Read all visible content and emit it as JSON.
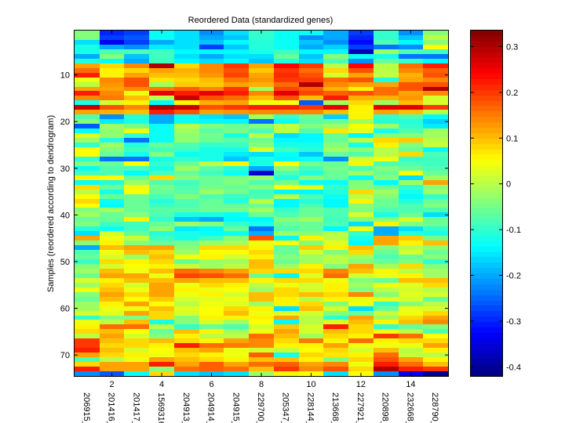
{
  "chart_data": {
    "type": "heatmap",
    "title": "Reordered Data (standardized genes)",
    "xlabel": "",
    "ylabel": "Samples (reordered according to dendrogram)",
    "x_tick_numbers": [
      "2",
      "4",
      "6",
      "8",
      "10",
      "12",
      "14"
    ],
    "x_tick_number_positions": [
      2,
      4,
      6,
      8,
      10,
      12,
      14
    ],
    "x_labels": [
      "206915_",
      "201416_",
      "201417_",
      "1569316",
      "204913_",
      "204914_",
      "204915_",
      "229700_",
      "205347_",
      "228144_",
      "213668_",
      "227921_",
      "220898_",
      "232668_",
      "228790_"
    ],
    "y_ticks": [
      10,
      20,
      30,
      40,
      50,
      60,
      70
    ],
    "y_range": [
      0.5,
      74.5
    ],
    "colorbar": {
      "colormap": "jet",
      "clim": [
        -0.42,
        0.335
      ],
      "ticks": [
        0.3,
        0.2,
        0.1,
        0,
        -0.1,
        -0.2,
        -0.3,
        -0.4
      ],
      "tick_labels": [
        "0.3",
        "0.2",
        "0.1",
        "0",
        "-0.1",
        "-0.2",
        "-0.3",
        "-0.4"
      ]
    },
    "grid": false,
    "values": [
      [
        -0.04,
        -0.3,
        -0.28,
        -0.13,
        -0.16,
        -0.22,
        -0.16,
        -0.1,
        -0.13,
        -0.13,
        -0.2,
        -0.28,
        -0.1,
        -0.22,
        -0.04
      ],
      [
        -0.04,
        -0.28,
        -0.26,
        -0.13,
        -0.16,
        -0.2,
        -0.18,
        -0.1,
        -0.13,
        -0.22,
        -0.2,
        -0.3,
        -0.1,
        -0.18,
        0.0
      ],
      [
        -0.16,
        -0.34,
        -0.28,
        -0.2,
        -0.16,
        -0.18,
        -0.14,
        -0.11,
        -0.13,
        -0.18,
        -0.22,
        -0.32,
        -0.08,
        -0.14,
        -0.04
      ],
      [
        -0.12,
        -0.2,
        -0.22,
        -0.15,
        -0.16,
        -0.28,
        -0.18,
        -0.11,
        -0.13,
        -0.2,
        -0.17,
        -0.28,
        -0.24,
        -0.22,
        0.05
      ],
      [
        -0.12,
        -0.08,
        -0.08,
        -0.09,
        -0.14,
        -0.14,
        -0.14,
        -0.12,
        -0.09,
        -0.14,
        -0.14,
        -0.38,
        -0.02,
        -0.08,
        -0.09
      ],
      [
        -0.2,
        -0.04,
        -0.18,
        -0.09,
        -0.16,
        -0.2,
        -0.16,
        -0.16,
        -0.06,
        -0.18,
        -0.04,
        -0.13,
        -0.12,
        -0.24,
        -0.24
      ],
      [
        -0.11,
        -0.13,
        -0.2,
        -0.09,
        -0.14,
        -0.16,
        -0.14,
        -0.18,
        -0.11,
        -0.16,
        -0.08,
        -0.22,
        -0.06,
        -0.1,
        -0.14
      ],
      [
        0.12,
        0.08,
        0.14,
        0.3,
        0.08,
        0.14,
        0.2,
        0.12,
        0.24,
        0.2,
        0.0,
        0.24,
        0.0,
        0.16,
        0.22
      ],
      [
        0.16,
        0.06,
        0.08,
        0.12,
        0.11,
        0.14,
        0.18,
        0.09,
        0.2,
        0.16,
        0.08,
        0.18,
        0.0,
        0.14,
        0.17
      ],
      [
        0.22,
        0.06,
        0.12,
        0.1,
        0.1,
        0.13,
        0.19,
        0.12,
        0.21,
        0.18,
        0.02,
        0.12,
        0.01,
        0.11,
        0.18
      ],
      [
        0.04,
        0.14,
        0.18,
        0.07,
        0.08,
        0.1,
        0.15,
        0.13,
        0.2,
        0.2,
        0.16,
        0.18,
        -0.12,
        0.12,
        0.14
      ],
      [
        0.0,
        0.13,
        0.18,
        -0.02,
        0.09,
        0.09,
        0.12,
        0.11,
        0.16,
        0.3,
        0.14,
        0.12,
        0.12,
        0.18,
        0.18
      ],
      [
        0.12,
        0.12,
        0.14,
        0.15,
        0.17,
        0.14,
        0.2,
        -0.02,
        0.19,
        0.17,
        0.11,
        0.06,
        0.16,
        0.18,
        0.3
      ],
      [
        0.22,
        0.14,
        0.04,
        0.26,
        0.22,
        0.26,
        0.22,
        0.14,
        0.26,
        0.19,
        0.17,
        0.18,
        0.16,
        0.12,
        0.14
      ],
      [
        0.14,
        0.15,
        0.1,
        0.0,
        0.28,
        0.18,
        0.16,
        0.1,
        0.18,
        0.1,
        0.22,
        0.11,
        0.11,
        0.13,
        0.02
      ],
      [
        -0.12,
        0.02,
        0.06,
        -0.14,
        0.06,
        0.11,
        0.12,
        0.04,
        0.05,
        -0.26,
        -0.02,
        0.08,
        -0.02,
        0.1,
        0.02
      ],
      [
        0.28,
        0.18,
        0.14,
        0.3,
        0.28,
        0.18,
        0.2,
        0.22,
        0.22,
        0.2,
        0.26,
        0.06,
        0.26,
        0.26,
        0.2
      ],
      [
        0.12,
        0.11,
        0.1,
        0.22,
        0.18,
        0.12,
        0.13,
        0.14,
        0.14,
        0.14,
        0.1,
        0.06,
        0.12,
        0.1,
        0.0
      ],
      [
        -0.08,
        -0.22,
        -0.11,
        -0.2,
        -0.13,
        -0.16,
        -0.18,
        -0.02,
        -0.1,
        -0.06,
        -0.17,
        0.06,
        -0.1,
        -0.08,
        -0.14
      ],
      [
        -0.04,
        -0.15,
        -0.12,
        -0.2,
        -0.13,
        -0.14,
        -0.14,
        -0.24,
        -0.13,
        -0.07,
        -0.06,
        -0.02,
        -0.11,
        -0.11,
        -0.17
      ],
      [
        -0.26,
        -0.02,
        -0.05,
        -0.13,
        0.0,
        -0.04,
        -0.06,
        -0.04,
        0.01,
        -0.04,
        -0.02,
        0.05,
        -0.02,
        -0.1,
        -0.15
      ],
      [
        -0.13,
        -0.03,
        0.04,
        -0.13,
        -0.02,
        -0.07,
        -0.05,
        -0.08,
        0.0,
        -0.08,
        0.07,
        0.03,
        -0.12,
        -0.08,
        -0.02
      ],
      [
        0.03,
        -0.03,
        -0.1,
        -0.13,
        -0.03,
        -0.05,
        -0.12,
        0.0,
        -0.16,
        -0.14,
        -0.06,
        -0.14,
        -0.04,
        -0.04,
        -0.02
      ],
      [
        -0.02,
        -0.11,
        -0.24,
        -0.13,
        -0.03,
        -0.06,
        -0.07,
        -0.06,
        -0.14,
        -0.14,
        -0.06,
        0.0,
        0.08,
        0.09,
        0.0
      ],
      [
        -0.1,
        -0.02,
        -0.11,
        -0.06,
        -0.08,
        -0.1,
        -0.09,
        -0.04,
        -0.12,
        -0.12,
        -0.04,
        -0.12,
        0.06,
        -0.04,
        0.01
      ],
      [
        0.05,
        -0.04,
        -0.09,
        -0.09,
        -0.09,
        -0.12,
        -0.12,
        0.02,
        -0.09,
        -0.11,
        -0.02,
        -0.04,
        0.0,
        -0.06,
        -0.14
      ],
      [
        0.05,
        -0.06,
        -0.12,
        -0.04,
        -0.13,
        -0.12,
        -0.15,
        -0.16,
        -0.13,
        -0.18,
        -0.06,
        -0.08,
        0.0,
        0.08,
        -0.08
      ],
      [
        -0.1,
        -0.24,
        -0.24,
        -0.12,
        -0.1,
        -0.12,
        -0.18,
        -0.12,
        -0.14,
        -0.13,
        -0.22,
        0.02,
        0.04,
        -0.1,
        -0.09
      ],
      [
        -0.04,
        -0.06,
        0.05,
        -0.1,
        -0.06,
        0.0,
        0.06,
        -0.12,
        0.05,
        -0.05,
        -0.06,
        0.06,
        -0.08,
        -0.08,
        -0.09
      ],
      [
        -0.13,
        -0.08,
        -0.09,
        -0.12,
        -0.02,
        -0.07,
        -0.11,
        -0.2,
        -0.04,
        -0.09,
        -0.05,
        -0.08,
        -0.04,
        -0.06,
        -0.08
      ],
      [
        -0.08,
        -0.08,
        -0.14,
        -0.08,
        -0.06,
        -0.09,
        -0.13,
        -0.36,
        -0.08,
        -0.11,
        -0.06,
        -0.02,
        -0.06,
        0.05,
        -0.06
      ],
      [
        0.06,
        0.05,
        -0.06,
        0.08,
        -0.04,
        -0.06,
        -0.05,
        -0.03,
        -0.11,
        -0.04,
        -0.06,
        -0.13,
        -0.04,
        -0.16,
        -0.02
      ],
      [
        -0.13,
        -0.11,
        -0.02,
        -0.08,
        -0.09,
        -0.06,
        -0.04,
        -0.08,
        -0.05,
        -0.13,
        -0.13,
        -0.04,
        -0.14,
        -0.02,
        0.12
      ],
      [
        0.08,
        -0.06,
        0.04,
        -0.05,
        -0.08,
        -0.05,
        -0.06,
        -0.04,
        0.05,
        0.03,
        -0.1,
        -0.04,
        -0.06,
        -0.1,
        -0.04
      ],
      [
        0.0,
        -0.12,
        0.05,
        -0.06,
        -0.07,
        -0.02,
        -0.05,
        -0.09,
        -0.14,
        -0.14,
        -0.11,
        0.08,
        -0.02,
        -0.12,
        -0.02
      ],
      [
        0.05,
        -0.06,
        -0.06,
        -0.08,
        -0.04,
        -0.08,
        -0.1,
        -0.08,
        0.0,
        -0.08,
        -0.13,
        0.0,
        -0.04,
        -0.14,
        -0.1
      ],
      [
        0.08,
        -0.13,
        -0.06,
        -0.11,
        -0.08,
        -0.06,
        -0.11,
        0.0,
        -0.14,
        -0.11,
        -0.14,
        0.06,
        -0.06,
        -0.11,
        -0.06
      ],
      [
        0.05,
        -0.14,
        -0.06,
        -0.09,
        -0.08,
        -0.06,
        -0.06,
        -0.06,
        -0.14,
        -0.08,
        -0.14,
        -0.04,
        -0.06,
        -0.08,
        -0.04
      ],
      [
        -0.04,
        -0.02,
        -0.06,
        -0.07,
        -0.07,
        -0.06,
        -0.05,
        -0.02,
        -0.1,
        -0.06,
        -0.08,
        -0.04,
        -0.08,
        -0.08,
        -0.08
      ],
      [
        -0.02,
        -0.06,
        -0.04,
        -0.08,
        -0.12,
        -0.12,
        -0.13,
        -0.06,
        -0.08,
        -0.06,
        -0.08,
        0.02,
        -0.12,
        -0.06,
        -0.16
      ],
      [
        -0.06,
        -0.06,
        0.06,
        -0.1,
        -0.18,
        -0.2,
        -0.14,
        -0.14,
        -0.04,
        -0.02,
        -0.09,
        -0.04,
        -0.04,
        0.02,
        -0.06
      ],
      [
        -0.04,
        -0.09,
        -0.09,
        -0.06,
        -0.02,
        -0.04,
        -0.1,
        -0.12,
        -0.06,
        -0.06,
        -0.08,
        -0.16,
        0.06,
        -0.04,
        -0.06
      ],
      [
        -0.11,
        -0.13,
        -0.09,
        -0.03,
        -0.15,
        -0.14,
        -0.06,
        -0.24,
        -0.08,
        -0.06,
        -0.14,
        0.04,
        -0.2,
        -0.16,
        -0.1
      ],
      [
        -0.16,
        0.02,
        -0.06,
        -0.11,
        -0.12,
        -0.13,
        -0.13,
        -0.2,
        -0.02,
        -0.04,
        0.0,
        -0.1,
        -0.2,
        -0.11,
        -0.12
      ],
      [
        0.12,
        0.04,
        0.01,
        -0.09,
        -0.12,
        -0.09,
        -0.04,
        0.18,
        -0.14,
        0.06,
        0.0,
        -0.12,
        0.12,
        0.09,
        -0.05
      ],
      [
        -0.04,
        0.06,
        -0.04,
        -0.06,
        -0.05,
        -0.02,
        -0.01,
        0.04,
        0.05,
        -0.04,
        0.03,
        -0.14,
        0.12,
        0.06,
        0.1
      ],
      [
        -0.2,
        0.1,
        0.12,
        0.12,
        -0.04,
        0.08,
        0.08,
        0.06,
        -0.06,
        0.09,
        0.06,
        0.1,
        -0.04,
        0.0,
        -0.03
      ],
      [
        -0.08,
        0.04,
        0.1,
        0.08,
        -0.02,
        0.05,
        0.05,
        0.08,
        -0.06,
        0.02,
        -0.04,
        0.08,
        -0.06,
        0.02,
        -0.06
      ],
      [
        -0.06,
        0.02,
        -0.02,
        0.1,
        0.04,
        0.06,
        0.02,
        0.06,
        -0.04,
        -0.02,
        0.0,
        -0.02,
        -0.08,
        -0.06,
        -0.04
      ],
      [
        -0.1,
        0.08,
        0.06,
        0.08,
        -0.06,
        -0.02,
        -0.02,
        0.1,
        -0.06,
        -0.02,
        0.0,
        -0.04,
        -0.06,
        -0.04,
        -0.1
      ],
      [
        -0.04,
        0.02,
        0.05,
        0.06,
        0.01,
        -0.02,
        0.0,
        0.1,
        -0.02,
        0.06,
        -0.04,
        0.12,
        -0.02,
        0.08,
        -0.04
      ],
      [
        -0.02,
        0.1,
        0.04,
        0.1,
        0.16,
        0.14,
        0.12,
        0.08,
        0.08,
        0.08,
        0.14,
        0.1,
        0.06,
        0.0,
        -0.02
      ],
      [
        -0.06,
        0.12,
        0.12,
        0.04,
        0.19,
        0.18,
        0.16,
        -0.06,
        -0.14,
        0.03,
        0.16,
        0.02,
        0.04,
        0.06,
        -0.02
      ],
      [
        0.02,
        0.06,
        0.1,
        0.1,
        0.12,
        0.1,
        0.1,
        0.06,
        0.08,
        0.08,
        0.04,
        -0.04,
        -0.06,
        0.1,
        0.1
      ],
      [
        -0.02,
        0.08,
        0.02,
        0.12,
        0.04,
        0.08,
        0.06,
        0.0,
        0.04,
        0.02,
        0.06,
        -0.02,
        0.04,
        0.03,
        0.08
      ],
      [
        0.04,
        0.1,
        0.04,
        0.12,
        0.06,
        0.04,
        0.05,
        -0.02,
        0.08,
        0.02,
        0.06,
        -0.04,
        0.0,
        0.02,
        0.0
      ],
      [
        -0.04,
        0.12,
        0.08,
        0.12,
        0.04,
        0.06,
        0.02,
        0.1,
        0.08,
        0.1,
        0.08,
        0.14,
        -0.04,
        0.03,
        0.02
      ],
      [
        -0.06,
        0.1,
        0.05,
        0.09,
        0.02,
        0.03,
        0.04,
        0.1,
        0.06,
        0.0,
        0.06,
        0.04,
        0.03,
        0.02,
        -0.06
      ],
      [
        -0.02,
        0.06,
        0.12,
        0.05,
        0.0,
        0.04,
        0.03,
        -0.02,
        0.06,
        0.08,
        -0.04,
        0.05,
        -0.1,
        -0.04,
        0.0
      ],
      [
        -0.02,
        0.04,
        0.04,
        0.1,
        0.03,
        0.05,
        0.08,
        0.06,
        -0.16,
        0.1,
        0.02,
        -0.16,
        -0.06,
        0.04,
        0.02
      ],
      [
        0.02,
        0.03,
        0.12,
        0.08,
        0.02,
        0.05,
        0.1,
        0.04,
        0.03,
        0.02,
        -0.04,
        -0.06,
        0.01,
        0.04,
        0.08
      ],
      [
        -0.1,
        -0.04,
        -0.04,
        0.08,
        -0.04,
        0.06,
        0.06,
        0.06,
        0.12,
        0.0,
        -0.1,
        0.12,
        -0.02,
        0.08,
        0.12
      ],
      [
        0.04,
        0.0,
        0.1,
        -0.12,
        -0.04,
        0.02,
        -0.02,
        0.05,
        -0.14,
        0.0,
        0.02,
        0.1,
        0.06,
        0.1,
        0.14
      ],
      [
        0.06,
        0.16,
        0.16,
        0.0,
        -0.1,
        -0.06,
        -0.08,
        0.02,
        0.09,
        0.02,
        0.22,
        0.08,
        -0.1,
        -0.06,
        -0.04
      ],
      [
        0.08,
        0.1,
        0.05,
        -0.06,
        0.1,
        0.06,
        -0.02,
        0.04,
        0.12,
        0.02,
        0.1,
        0.08,
        0.04,
        0.0,
        -0.08
      ],
      [
        0.0,
        0.12,
        0.02,
        -0.04,
        0.06,
        0.0,
        0.0,
        0.16,
        0.1,
        -0.02,
        0.08,
        0.06,
        0.2,
        0.16,
        0.05
      ],
      [
        0.2,
        0.1,
        0.08,
        0.1,
        0.08,
        0.06,
        0.12,
        0.14,
        0.08,
        0.15,
        0.06,
        0.16,
        0.06,
        0.08,
        0.08
      ],
      [
        0.2,
        0.08,
        0.08,
        0.06,
        0.22,
        0.16,
        0.15,
        0.14,
        0.06,
        0.06,
        0.12,
        0.04,
        0.04,
        0.04,
        0.12
      ],
      [
        0.22,
        0.1,
        0.02,
        0.05,
        0.1,
        0.12,
        0.04,
        0.02,
        0.01,
        0.05,
        0.08,
        0.02,
        0.1,
        0.0,
        0.06
      ],
      [
        0.12,
        0.08,
        0.06,
        0.04,
        0.08,
        0.06,
        0.04,
        0.17,
        -0.12,
        0.08,
        0.07,
        0.06,
        0.16,
        0.01,
        0.0
      ],
      [
        -0.08,
        0.0,
        0.04,
        0.12,
        0.1,
        0.08,
        0.06,
        0.1,
        0.1,
        0.06,
        -0.04,
        0.08,
        0.18,
        0.12,
        0.06
      ],
      [
        0.08,
        0.12,
        0.12,
        0.22,
        0.12,
        0.17,
        0.12,
        0.16,
        0.17,
        0.12,
        0.14,
        0.04,
        0.22,
        0.16,
        0.1
      ],
      [
        0.22,
        0.12,
        0.12,
        -0.04,
        0.16,
        0.17,
        0.16,
        0.1,
        0.2,
        0.14,
        0.18,
        0.08,
        0.3,
        0.22,
        0.2
      ],
      [
        -0.22,
        -0.26,
        -0.13,
        0.08,
        -0.16,
        -0.18,
        -0.16,
        -0.02,
        0.06,
        0.05,
        -0.16,
        0.05,
        -0.22,
        -0.34,
        -0.4
      ]
    ]
  }
}
